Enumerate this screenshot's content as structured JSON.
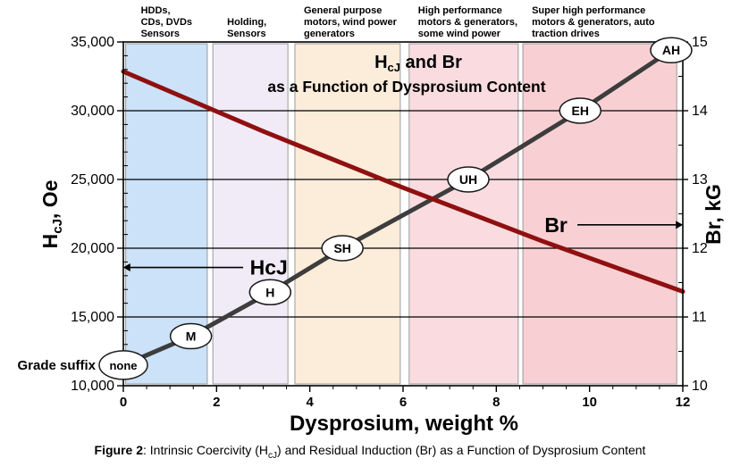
{
  "figure": {
    "caption": {
      "label": "Figure 2",
      "sep": ": ",
      "pre": "Intrinsic Coercivity (H",
      "sub": "cJ",
      "post": ") and Residual Induction (Br) as a Function of Dysprosium Content"
    }
  },
  "chart_data": {
    "type": "line",
    "title": {
      "h": "H",
      "sub": "cJ",
      "rest": " and Br",
      "line2": "as a Function of Dysprosium Content"
    },
    "x_axis": {
      "label": "Dysprosium, weight %",
      "min": 0,
      "max": 12,
      "minor_step": 0.5,
      "major_step": 2,
      "ticks": [
        {
          "v": 0,
          "label": "0"
        },
        {
          "v": 2,
          "label": "2"
        },
        {
          "v": 4,
          "label": "4"
        },
        {
          "v": 6,
          "label": "6"
        },
        {
          "v": 8,
          "label": "8"
        },
        {
          "v": 10,
          "label": "10"
        },
        {
          "v": 12,
          "label": "12"
        }
      ]
    },
    "y_left": {
      "label_pre": "H",
      "label_sub": "cJ",
      "label_post": ", Oe",
      "min": 10000,
      "max": 35000,
      "minor_step": 1000,
      "major_step": 5000,
      "ticks": [
        {
          "v": 35000,
          "label": "35,000"
        },
        {
          "v": 30000,
          "label": "30,000"
        },
        {
          "v": 25000,
          "label": "25,000"
        },
        {
          "v": 20000,
          "label": "20,000"
        },
        {
          "v": 15000,
          "label": "15,000"
        },
        {
          "v": 10000,
          "label": "10,000"
        }
      ],
      "gridlines": [
        30000,
        25000,
        20000,
        15000
      ]
    },
    "y_right": {
      "label": "Br, kG",
      "min": 10,
      "max": 15,
      "minor_step": 0.5,
      "major_step": 1,
      "ticks": [
        {
          "v": 15,
          "label": "15"
        },
        {
          "v": 14,
          "label": "14"
        },
        {
          "v": 13,
          "label": "13"
        },
        {
          "v": 12,
          "label": "12"
        },
        {
          "v": 11,
          "label": "11"
        },
        {
          "v": 10,
          "label": "10"
        }
      ]
    },
    "bands": [
      {
        "name": "hdds-cds-dvds-sensors",
        "x0": 0.05,
        "x1": 1.8,
        "color": "#cbe2f8",
        "lines": [
          "HDDs,",
          "CDs, DVDs",
          "Sensors"
        ],
        "indent": 17
      },
      {
        "name": "holding-sensors",
        "x0": 1.92,
        "x1": 3.53,
        "color": "#f1ebf8",
        "lines": [
          "Holding,",
          "Sensors"
        ],
        "indent": 16
      },
      {
        "name": "general-purpose-motors",
        "x0": 3.68,
        "x1": 5.94,
        "color": "#fcecda",
        "lines": [
          "General purpose",
          "motors, wind power",
          "generators"
        ],
        "indent": 10
      },
      {
        "name": "high-performance-motors",
        "x0": 6.13,
        "x1": 8.47,
        "color": "#fadce0",
        "lines": [
          "High performance",
          "motors & generators,",
          "some wind power"
        ],
        "indent": 10
      },
      {
        "name": "super-high-performance-motors",
        "x0": 8.57,
        "x1": 11.87,
        "color": "#f8d0d3",
        "lines": [
          "Super high performance",
          "motors & generators, auto",
          "traction drives"
        ],
        "indent": 10
      }
    ],
    "series": [
      {
        "name": "HcJ",
        "axis": "left",
        "color": "#3d3d3d",
        "width": 5,
        "points": [
          [
            0,
            11500
          ],
          [
            1.45,
            13600
          ],
          [
            3.15,
            16800
          ],
          [
            4.7,
            20000
          ],
          [
            7.4,
            25000
          ],
          [
            9.8,
            30000
          ],
          [
            11.75,
            34400
          ]
        ]
      },
      {
        "name": "Br",
        "axis": "right",
        "color": "#8f1010",
        "width": 5,
        "points": [
          [
            0,
            14.57
          ],
          [
            3,
            13.7
          ],
          [
            6,
            12.88
          ],
          [
            9,
            12.1
          ],
          [
            12,
            11.37
          ]
        ]
      }
    ],
    "grade_points": [
      {
        "label": "none",
        "x": 0,
        "y": 11500,
        "rx": 27,
        "ry": 16,
        "fs": 13
      },
      {
        "label": "M",
        "x": 1.45,
        "y": 13600,
        "rx": 23,
        "ry": 14,
        "fs": 14
      },
      {
        "label": "H",
        "x": 3.15,
        "y": 16800,
        "rx": 23,
        "ry": 14,
        "fs": 14
      },
      {
        "label": "SH",
        "x": 4.7,
        "y": 20000,
        "rx": 23,
        "ry": 14,
        "fs": 14
      },
      {
        "label": "UH",
        "x": 7.4,
        "y": 25000,
        "rx": 23,
        "ry": 14,
        "fs": 14
      },
      {
        "label": "EH",
        "x": 9.8,
        "y": 30000,
        "rx": 23,
        "ry": 14,
        "fs": 14
      },
      {
        "label": "AH",
        "x": 11.75,
        "y": 34400,
        "rx": 23,
        "ry": 14,
        "fs": 14
      }
    ],
    "annotations": [
      {
        "name": "hcj-curve-label",
        "text": "HcJ",
        "x": 3.12,
        "y": 18600,
        "arrow": {
          "x0": 2.57,
          "x1": 0.15,
          "dir": "left"
        }
      },
      {
        "name": "br-curve-label",
        "text": "Br",
        "x": 9.28,
        "y": 12.34,
        "axis": "right",
        "arrow": {
          "x0": 9.74,
          "x1": 11.85,
          "dir": "right"
        }
      },
      {
        "name": "grade-suffix-label",
        "text": "Grade suffix",
        "y": 11500
      }
    ]
  }
}
